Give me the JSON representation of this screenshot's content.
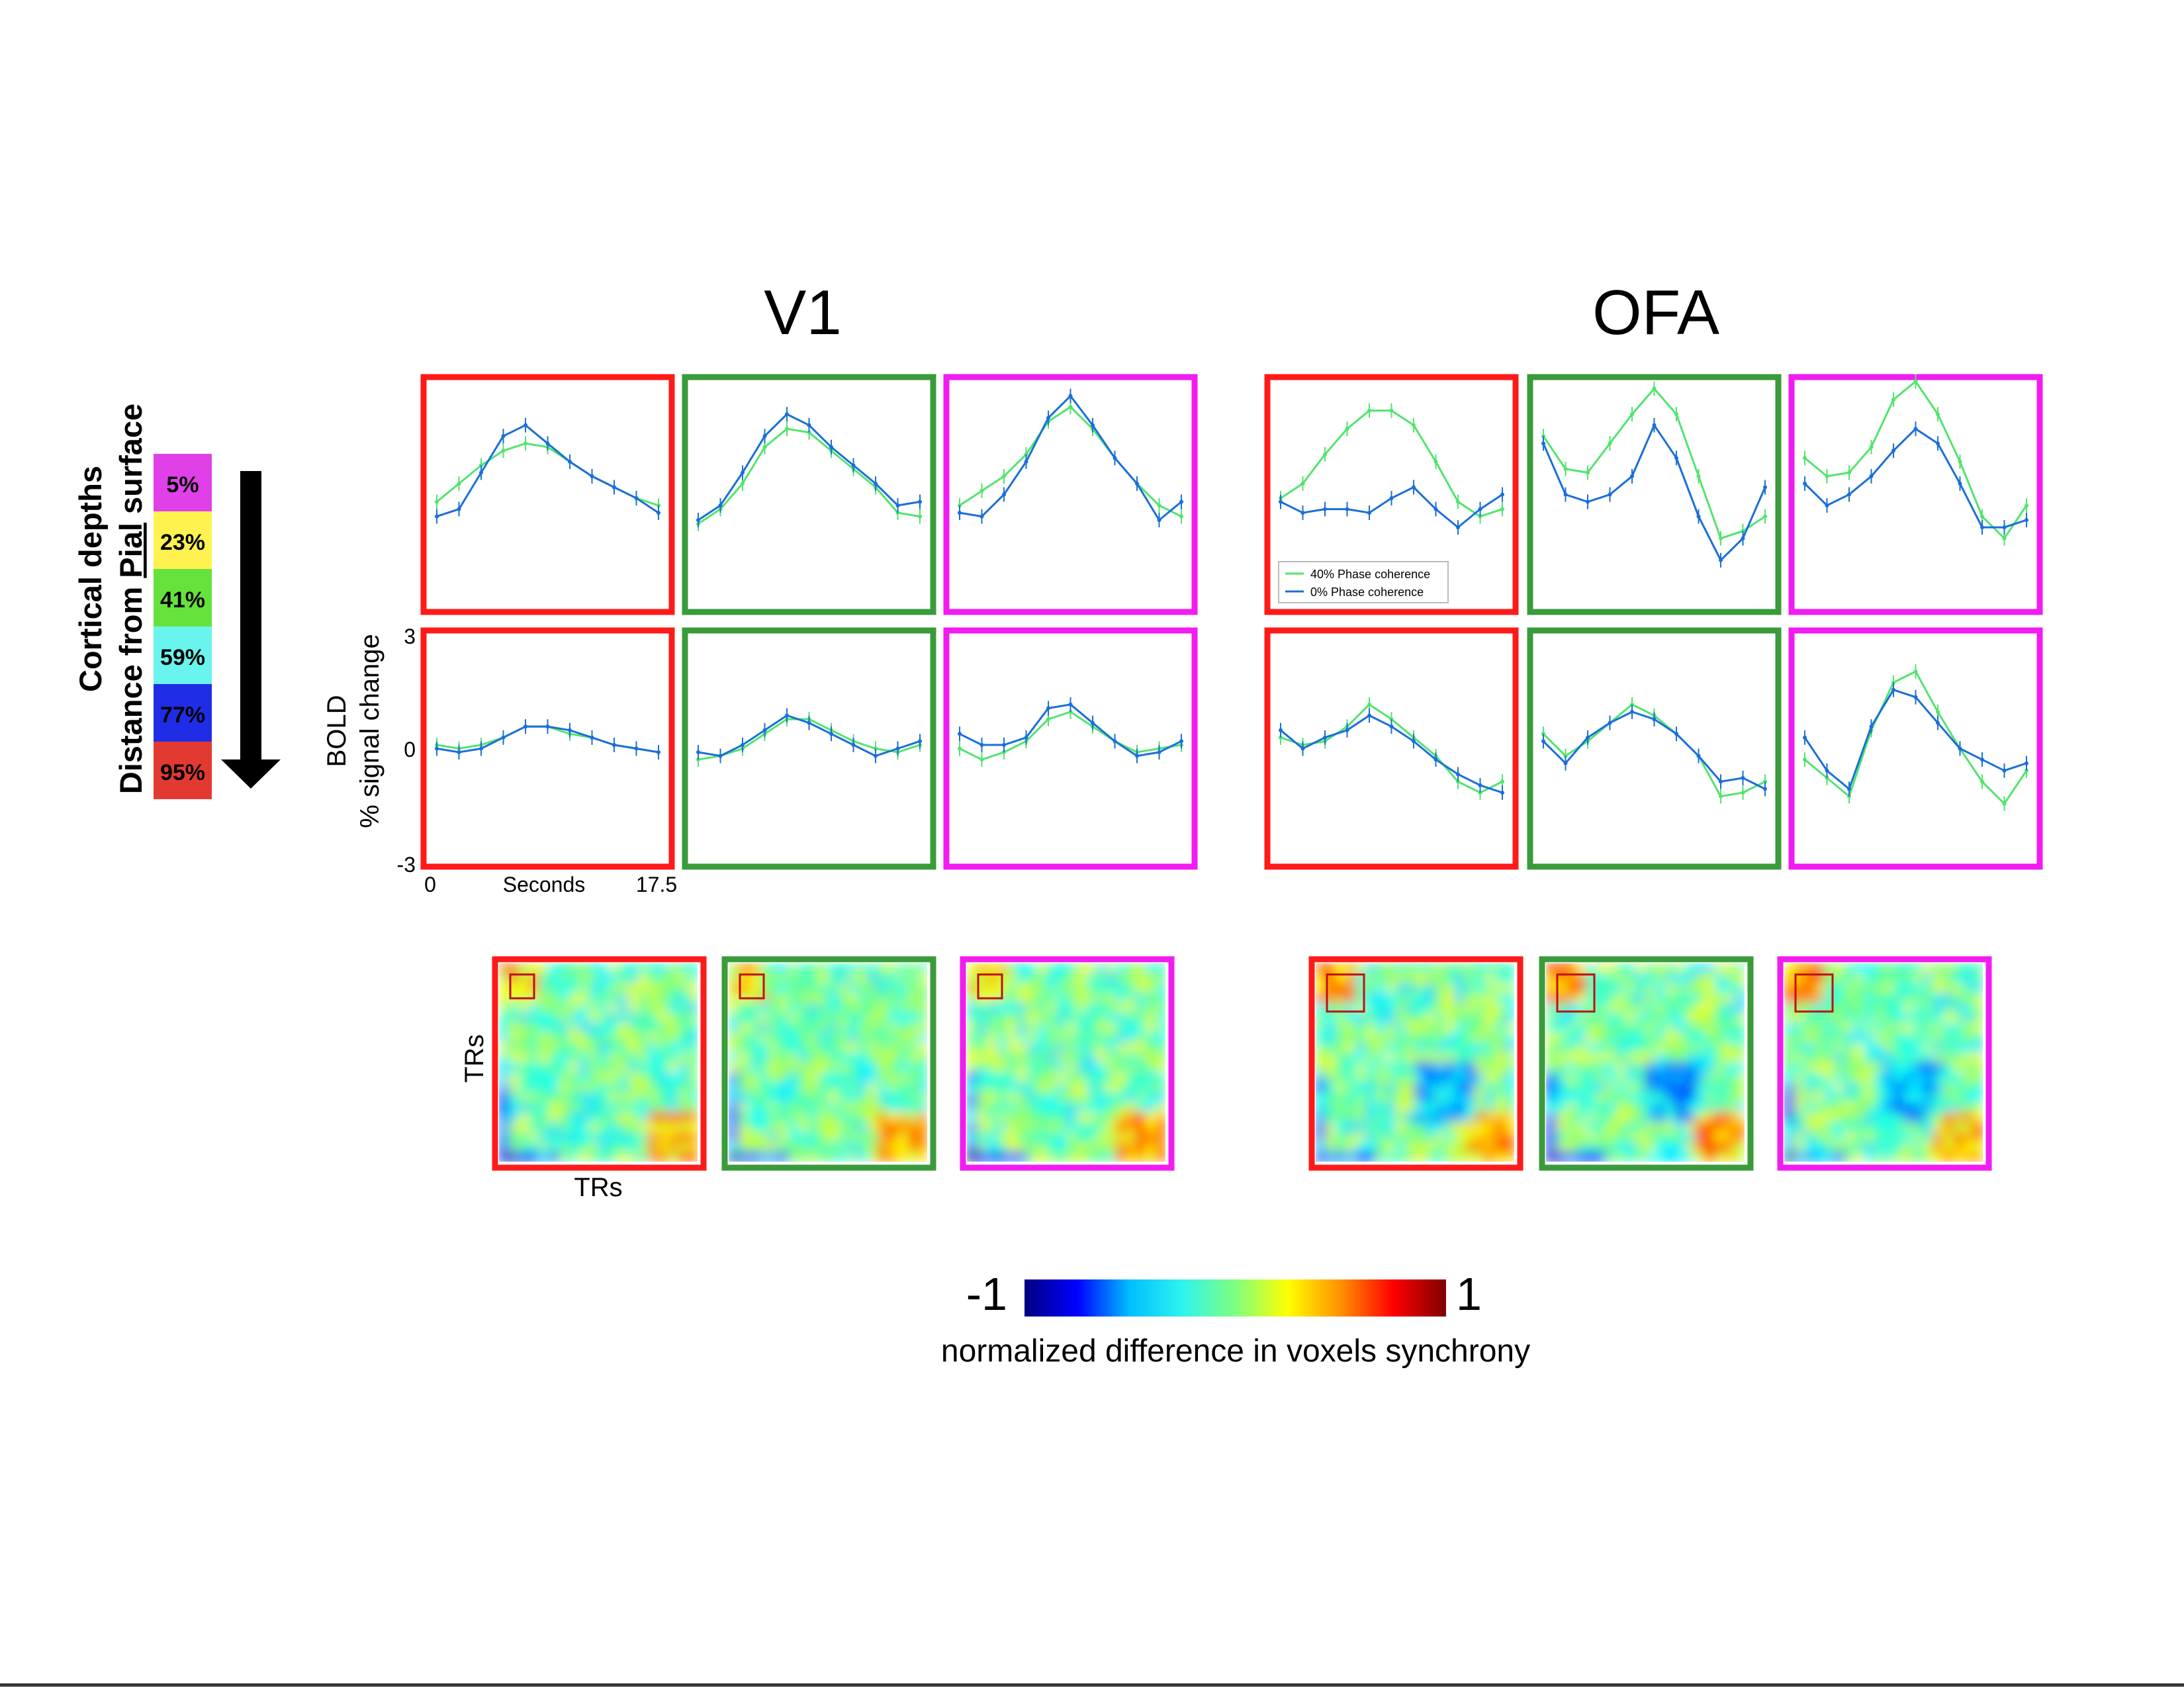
{
  "titles": {
    "left": "V1",
    "right": "OFA"
  },
  "depth_legend": {
    "line1": "Cortical depths",
    "line2_prefix": "Distance from ",
    "line2_pial": "Pial",
    "line2_suffix": " surface",
    "items": [
      {
        "label": "5%",
        "color": "#e040e8"
      },
      {
        "label": "23%",
        "color": "#fff250"
      },
      {
        "label": "41%",
        "color": "#66e23c"
      },
      {
        "label": "59%",
        "color": "#69f4ee"
      },
      {
        "label": "77%",
        "color": "#1f2ee6"
      },
      {
        "label": "95%",
        "color": "#e23a30"
      }
    ]
  },
  "colors": {
    "red": "#ff1a1a",
    "green": "#3a9b3a",
    "magenta": "#f21bf2",
    "blue_line": "#1a6fd8",
    "green_line": "#52e46e"
  },
  "axis": {
    "ylabel_line1": "BOLD",
    "ylabel_line2": "% signal change",
    "yticks": [
      "3",
      "0",
      "-3"
    ],
    "x_start": "0",
    "xlabel": "Seconds",
    "x_end": "17.5",
    "tr_label_y": "TRs",
    "tr_label_x": "TRs"
  },
  "legend": {
    "green_label": "40% Phase coherence",
    "blue_label": "0% Phase coherence"
  },
  "colorbar": {
    "min_label": "-1",
    "max_label": "1",
    "caption": "normalized difference in voxels synchrony",
    "stops": [
      "#00007f",
      "#0000ff",
      "#00bfff",
      "#2ef4ee",
      "#7fff7f",
      "#ffff00",
      "#ff9000",
      "#ff0000",
      "#7f0000"
    ]
  },
  "chart_data": {
    "type": "line",
    "xlabel": "Seconds",
    "ylabel": "% signal change",
    "x_range": [
      0,
      17.5
    ],
    "y_range": [
      -3,
      3
    ],
    "series_names": [
      "40% Phase coherence",
      "0% Phase coherence"
    ],
    "panels": [
      {
        "region": "V1",
        "row": 1,
        "col": 1,
        "frame": "red",
        "green": [
          -0.2,
          0.3,
          0.8,
          1.2,
          1.4,
          1.3,
          0.9,
          0.5,
          0.2,
          -0.1,
          -0.3
        ],
        "blue": [
          -0.6,
          -0.4,
          0.6,
          1.6,
          1.9,
          1.4,
          0.9,
          0.5,
          0.2,
          -0.1,
          -0.5
        ]
      },
      {
        "region": "V1",
        "row": 1,
        "col": 2,
        "frame": "green",
        "green": [
          -0.8,
          -0.4,
          0.3,
          1.3,
          1.8,
          1.7,
          1.2,
          0.7,
          0.2,
          -0.5,
          -0.6
        ],
        "blue": [
          -0.7,
          -0.3,
          0.6,
          1.6,
          2.2,
          1.9,
          1.3,
          0.8,
          0.3,
          -0.3,
          -0.2
        ]
      },
      {
        "region": "V1",
        "row": 1,
        "col": 3,
        "frame": "magenta",
        "green": [
          -0.3,
          0.1,
          0.5,
          1.1,
          2.0,
          2.4,
          1.8,
          1.0,
          0.3,
          -0.3,
          -0.6
        ],
        "blue": [
          -0.5,
          -0.6,
          0.0,
          0.9,
          2.1,
          2.7,
          1.9,
          1.0,
          0.3,
          -0.7,
          -0.2
        ]
      },
      {
        "region": "OFA",
        "row": 1,
        "col": 1,
        "frame": "red",
        "green": [
          -0.1,
          0.3,
          1.1,
          1.8,
          2.3,
          2.3,
          1.9,
          0.9,
          -0.2,
          -0.6,
          -0.4
        ],
        "blue": [
          -0.2,
          -0.5,
          -0.4,
          -0.4,
          -0.5,
          -0.1,
          0.2,
          -0.4,
          -0.9,
          -0.4,
          0.0
        ]
      },
      {
        "region": "OFA",
        "row": 1,
        "col": 2,
        "frame": "green",
        "green": [
          1.6,
          0.7,
          0.6,
          1.4,
          2.2,
          2.9,
          2.2,
          0.5,
          -1.2,
          -1.0,
          -0.6
        ],
        "blue": [
          1.4,
          0.0,
          -0.2,
          0.0,
          0.5,
          1.9,
          1.0,
          -0.6,
          -1.8,
          -1.2,
          0.2
        ]
      },
      {
        "region": "OFA",
        "row": 1,
        "col": 3,
        "frame": "magenta",
        "green": [
          1.0,
          0.5,
          0.6,
          1.3,
          2.6,
          3.1,
          2.2,
          0.9,
          -0.6,
          -1.2,
          -0.3
        ],
        "blue": [
          0.3,
          -0.3,
          0.0,
          0.5,
          1.2,
          1.8,
          1.4,
          0.3,
          -0.9,
          -0.9,
          -0.7
        ]
      },
      {
        "region": "V1",
        "row": 2,
        "col": 1,
        "frame": "red",
        "green": [
          0.1,
          0.0,
          0.1,
          0.3,
          0.6,
          0.6,
          0.4,
          0.3,
          0.1,
          0.0,
          -0.1
        ],
        "blue": [
          0.0,
          -0.1,
          0.0,
          0.3,
          0.6,
          0.6,
          0.5,
          0.3,
          0.1,
          0.0,
          -0.1
        ]
      },
      {
        "region": "V1",
        "row": 2,
        "col": 2,
        "frame": "green",
        "green": [
          -0.3,
          -0.2,
          0.0,
          0.4,
          0.8,
          0.8,
          0.5,
          0.2,
          0.0,
          -0.1,
          0.1
        ],
        "blue": [
          -0.1,
          -0.2,
          0.1,
          0.5,
          0.9,
          0.7,
          0.4,
          0.1,
          -0.2,
          0.0,
          0.2
        ]
      },
      {
        "region": "V1",
        "row": 2,
        "col": 3,
        "frame": "magenta",
        "green": [
          0.0,
          -0.3,
          -0.1,
          0.2,
          0.8,
          1.0,
          0.6,
          0.2,
          -0.1,
          0.0,
          0.1
        ],
        "blue": [
          0.4,
          0.1,
          0.1,
          0.3,
          1.1,
          1.2,
          0.7,
          0.2,
          -0.2,
          -0.1,
          0.2
        ]
      },
      {
        "region": "OFA",
        "row": 2,
        "col": 1,
        "frame": "red",
        "green": [
          0.3,
          0.1,
          0.2,
          0.6,
          1.2,
          0.8,
          0.3,
          -0.2,
          -0.9,
          -1.2,
          -0.9
        ],
        "blue": [
          0.5,
          0.0,
          0.3,
          0.5,
          0.9,
          0.6,
          0.2,
          -0.3,
          -0.7,
          -1.0,
          -1.2
        ]
      },
      {
        "region": "OFA",
        "row": 2,
        "col": 2,
        "frame": "green",
        "green": [
          0.4,
          -0.2,
          0.2,
          0.7,
          1.2,
          0.9,
          0.4,
          -0.2,
          -1.3,
          -1.2,
          -0.9
        ],
        "blue": [
          0.2,
          -0.4,
          0.3,
          0.7,
          1.0,
          0.8,
          0.4,
          -0.2,
          -0.9,
          -0.8,
          -1.1
        ]
      },
      {
        "region": "OFA",
        "row": 2,
        "col": 3,
        "frame": "magenta",
        "green": [
          -0.3,
          -0.8,
          -1.3,
          0.5,
          1.8,
          2.1,
          1.0,
          0.0,
          -0.9,
          -1.5,
          -0.6
        ],
        "blue": [
          0.3,
          -0.6,
          -1.1,
          0.6,
          1.6,
          1.4,
          0.7,
          0.0,
          -0.3,
          -0.6,
          -0.4
        ]
      }
    ],
    "similarity_matrices": {
      "type": "heatmap",
      "axes": [
        "TRs",
        "TRs"
      ],
      "value_range": [
        -1,
        1
      ],
      "panels": [
        "V1-red",
        "V1-green",
        "V1-magenta",
        "OFA-red",
        "OFA-green",
        "OFA-magenta"
      ]
    }
  }
}
